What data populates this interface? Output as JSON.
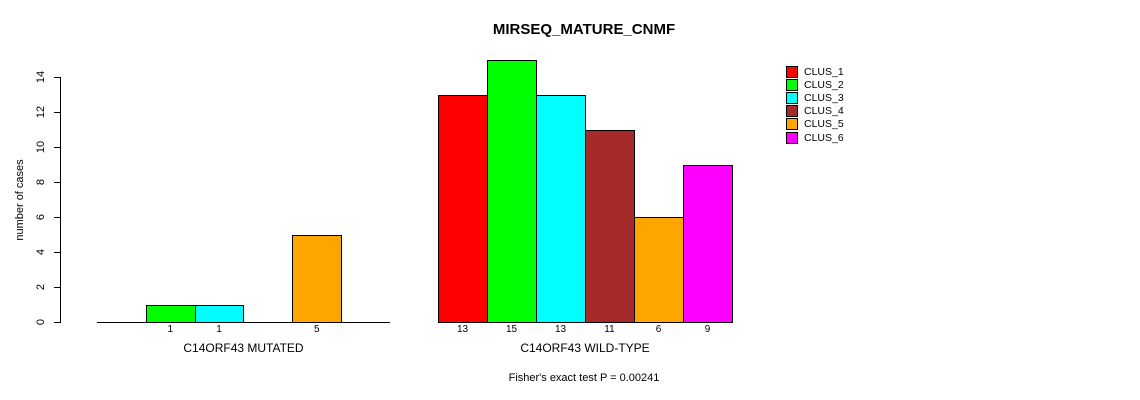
{
  "chart_data": {
    "type": "bar",
    "title": "MIRSEQ_MATURE_CNMF",
    "ylabel": "number of cases",
    "xlabel": "",
    "ylim": [
      0,
      14
    ],
    "y_ticks": [
      0,
      2,
      4,
      6,
      8,
      10,
      12,
      14
    ],
    "grid": "off",
    "legend_position": "right",
    "clusters": [
      "CLUS_1",
      "CLUS_2",
      "CLUS_3",
      "CLUS_4",
      "CLUS_5",
      "CLUS_6"
    ],
    "cluster_colors": [
      "#FF0000",
      "#00FF00",
      "#00FFFF",
      "#A52A2A",
      "#FFA500",
      "#FF00FF"
    ],
    "groups": [
      {
        "label": "C14ORF43 MUTATED",
        "values": [
          0,
          1,
          1,
          0,
          5,
          0
        ],
        "bar_value_labels": [
          "",
          "1",
          "1",
          "",
          "5",
          ""
        ]
      },
      {
        "label": "C14ORF43 WILD-TYPE",
        "values": [
          13,
          15,
          13,
          11,
          6,
          9
        ],
        "bar_value_labels": [
          "13",
          "15",
          "13",
          "11",
          "6",
          "9"
        ]
      }
    ],
    "annotation": "Fisher's exact test P = 0.00241"
  }
}
